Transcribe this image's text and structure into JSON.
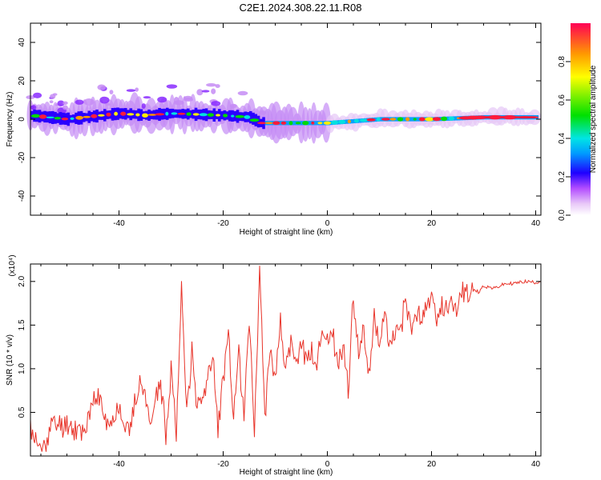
{
  "title": "C2E1.2024.308.22.11.R08",
  "chart_data": [
    {
      "type": "heatmap",
      "xlabel": "Height of straight line (km)",
      "ylabel": "Frequency (Hz)",
      "xlim": [
        -57,
        41
      ],
      "ylim": [
        -50,
        50
      ],
      "xticks": [
        "-40",
        "-20",
        "0",
        "20",
        "40"
      ],
      "xtick_values": [
        -40,
        -20,
        0,
        20,
        40
      ],
      "yticks": [
        "-40",
        "-20",
        "0",
        "20",
        "40"
      ],
      "ytick_values": [
        -40,
        -20,
        0,
        20,
        40
      ],
      "colorbar": {
        "label": "Normalized spectral amplitude",
        "range": [
          0,
          1
        ],
        "ticks": [
          "0.0",
          "0.2",
          "0.4",
          "0.6",
          "0.8"
        ],
        "tick_values": [
          0.0,
          0.2,
          0.4,
          0.6,
          0.8
        ]
      },
      "band_center": [
        [
          -57,
          2
        ],
        [
          -50,
          0
        ],
        [
          -40,
          3
        ],
        [
          -35,
          2
        ],
        [
          -30,
          3
        ],
        [
          -20,
          2
        ],
        [
          -15,
          1
        ],
        [
          -13,
          -2
        ],
        [
          0,
          -2
        ],
        [
          5,
          -1
        ],
        [
          10,
          0
        ],
        [
          20,
          0
        ],
        [
          30,
          1
        ],
        [
          40,
          1
        ]
      ]
    },
    {
      "type": "line",
      "xlabel": "Height of straight line (km)",
      "ylabel": "SNR (10 * v/v)",
      "y_multiplier": "(x10⁴)",
      "xlim": [
        -57,
        41
      ],
      "ylim": [
        0,
        2.2
      ],
      "xticks": [
        "-40",
        "-20",
        "0",
        "20",
        "40"
      ],
      "xtick_values": [
        -40,
        -20,
        0,
        20,
        40
      ],
      "yticks": [
        "0.5",
        "1.0",
        "1.5",
        "2.0"
      ],
      "ytick_values": [
        0.5,
        1.0,
        1.5,
        2.0
      ],
      "color": "#e8342a",
      "x": [
        -57,
        -55,
        -53,
        -50,
        -48,
        -46,
        -45,
        -44,
        -42,
        -40,
        -38,
        -36,
        -34,
        -32,
        -31,
        -30,
        -29,
        -28,
        -27,
        -26,
        -25,
        -23,
        -22,
        -21,
        -20,
        -19,
        -18,
        -17,
        -16,
        -15,
        -14,
        -13,
        -12,
        -11,
        -10,
        -9,
        -8,
        -7,
        -6,
        -5,
        -4,
        -3,
        -2,
        -1,
        0,
        1,
        2,
        3,
        4,
        5,
        6,
        7,
        8,
        9,
        10,
        11,
        12,
        13,
        14,
        15,
        16,
        17,
        18,
        19,
        20,
        21,
        22,
        23,
        24,
        25,
        26,
        27,
        28,
        29,
        30,
        32,
        34,
        36,
        38,
        40,
        41
      ],
      "values": [
        0.3,
        0.05,
        0.35,
        0.38,
        0.3,
        0.35,
        0.6,
        0.7,
        0.3,
        0.6,
        0.25,
        0.9,
        0.4,
        0.85,
        0.2,
        1.05,
        0.3,
        1.9,
        0.5,
        1.2,
        0.6,
        0.8,
        1.25,
        0.3,
        0.9,
        1.4,
        0.35,
        1.2,
        0.5,
        1.6,
        0.3,
        2.15,
        0.45,
        1.3,
        0.9,
        1.5,
        1.0,
        1.25,
        1.0,
        1.35,
        1.1,
        1.2,
        1.0,
        1.5,
        1.3,
        1.45,
        1.0,
        1.3,
        0.75,
        1.85,
        1.2,
        1.45,
        0.9,
        1.65,
        1.15,
        1.7,
        1.2,
        1.5,
        1.35,
        1.9,
        1.4,
        1.6,
        1.55,
        1.7,
        1.8,
        1.55,
        1.75,
        1.7,
        1.8,
        1.75,
        1.85,
        1.85,
        1.9,
        1.88,
        1.95,
        1.92,
        1.97,
        1.98,
        2.0,
        1.99,
        2.0
      ]
    }
  ]
}
